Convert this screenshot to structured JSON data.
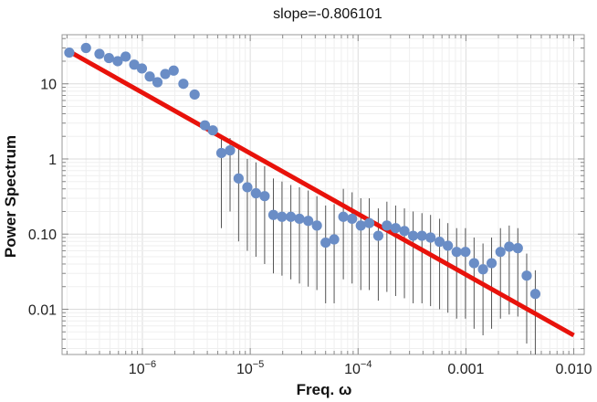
{
  "chart_data": {
    "type": "scatter",
    "title": "slope=-0.806101",
    "xlabel": "Freq. ω",
    "ylabel": "Power Spectrum",
    "x_scale": "log",
    "y_scale": "log",
    "xlim": [
      1.8e-07,
      0.0125
    ],
    "ylim": [
      0.0025,
      45
    ],
    "grid": true,
    "x_ticks": [
      {
        "value": 1e-06,
        "base": "10",
        "exp": "−6"
      },
      {
        "value": 1e-05,
        "base": "10",
        "exp": "−5"
      },
      {
        "value": 0.0001,
        "base": "10",
        "exp": "−4"
      },
      {
        "value": 0.001,
        "label": "0.001"
      },
      {
        "value": 0.01,
        "label": "0.010"
      }
    ],
    "y_ticks": [
      {
        "value": 0.01,
        "label": "0.01"
      },
      {
        "value": 0.1,
        "label": "0.10"
      },
      {
        "value": 1,
        "label": "1"
      },
      {
        "value": 10,
        "label": "10"
      }
    ],
    "series": [
      {
        "kind": "points",
        "color": "#6a8dc6",
        "x": [
          2.1e-07,
          3e-07,
          4e-07,
          4.9e-07,
          5.9e-07,
          7e-07,
          8.4e-07,
          9.9e-07,
          1.17e-06,
          1.38e-06,
          1.63e-06,
          1.95e-06,
          2.4e-06,
          3.05e-06,
          3.8e-06,
          4.5e-06,
          5.4e-06,
          6.5e-06,
          7.8e-06,
          9.4e-06,
          1.13e-05,
          1.36e-05,
          1.64e-05,
          1.97e-05,
          2.38e-05,
          2.86e-05,
          3.45e-05,
          4.15e-05,
          5e-05,
          6e-05,
          7.3e-05,
          8.8e-05,
          0.000106,
          0.000127,
          0.000154,
          0.000185,
          0.000223,
          0.000269,
          0.000324,
          0.000391,
          0.00047,
          0.00057,
          0.00068,
          0.00082,
          0.00099,
          0.00119,
          0.00144,
          0.00173,
          0.00209,
          0.00252,
          0.00303,
          0.00366,
          0.0044
        ],
        "y": [
          26,
          30,
          25,
          22,
          20,
          23,
          18,
          16,
          12.5,
          10.5,
          13.5,
          15,
          10,
          7.2,
          2.8,
          2.4,
          1.2,
          1.3,
          0.55,
          0.42,
          0.35,
          0.32,
          0.18,
          0.17,
          0.17,
          0.16,
          0.15,
          0.13,
          0.077,
          0.085,
          0.17,
          0.16,
          0.13,
          0.14,
          0.095,
          0.13,
          0.12,
          0.11,
          0.095,
          0.095,
          0.09,
          0.079,
          0.07,
          0.058,
          0.058,
          0.041,
          0.034,
          0.041,
          0.058,
          0.068,
          0.065,
          0.028,
          0.016
        ]
      },
      {
        "kind": "fit-line",
        "color": "#e8120b",
        "slope": -0.806101,
        "x": [
          2e-07,
          0.01
        ],
        "y": [
          28,
          0.0045
        ]
      }
    ],
    "error_bars_low": [
      null,
      null,
      null,
      null,
      null,
      null,
      null,
      null,
      null,
      null,
      null,
      null,
      null,
      null,
      null,
      null,
      0.12,
      0.2,
      0.08,
      0.06,
      0.05,
      0.04,
      0.03,
      0.028,
      0.025,
      0.022,
      0.02,
      0.018,
      0.012,
      0.012,
      0.025,
      0.022,
      0.018,
      0.018,
      0.013,
      0.017,
      0.015,
      0.014,
      0.012,
      0.012,
      0.011,
      0.01,
      0.009,
      0.0075,
      0.0075,
      0.0055,
      0.0045,
      0.0055,
      0.0075,
      0.0085,
      0.008,
      0.0035,
      0.0025
    ],
    "error_bars_high": [
      null,
      null,
      null,
      null,
      null,
      null,
      null,
      null,
      null,
      null,
      null,
      null,
      null,
      null,
      null,
      null,
      2.0,
      1.9,
      1.4,
      1.0,
      0.9,
      0.8,
      0.55,
      0.5,
      0.45,
      0.42,
      0.38,
      0.32,
      0.24,
      0.25,
      0.4,
      0.36,
      0.3,
      0.3,
      0.22,
      0.27,
      0.24,
      0.22,
      0.2,
      0.19,
      0.18,
      0.16,
      0.14,
      0.12,
      0.12,
      0.09,
      0.075,
      0.09,
      0.12,
      0.13,
      0.12,
      0.055,
      0.033
    ]
  }
}
